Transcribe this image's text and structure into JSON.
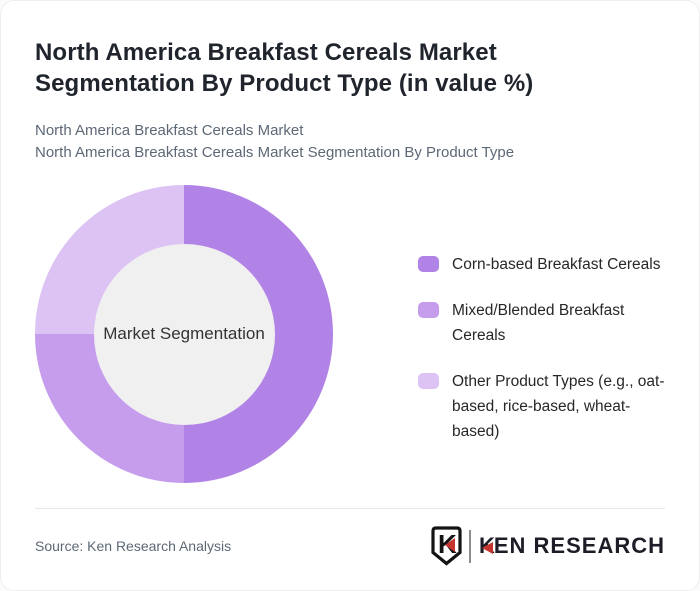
{
  "header": {
    "title": "North America Breakfast Cereals Market Segmentation By Product Type (in value %)",
    "subtitle_line1": "North America Breakfast Cereals Market",
    "subtitle_line2": "North America Breakfast Cereals Market Segmentation By Product Type"
  },
  "chart_data": {
    "type": "pie",
    "variant": "donut",
    "title": "North America Breakfast Cereals Market Segmentation By Product Type (in value %)",
    "center_label": "Market Segmentation",
    "unit": "value %",
    "values_note": "No numeric data labels shown in chart; values estimated from arc angles",
    "hole_color": "#f0f0f0",
    "center_label_color": "#333333",
    "legend_position": "right",
    "segments": [
      {
        "label": "Corn-based Breakfast Cereals",
        "value": 50,
        "color": "#b283e6"
      },
      {
        "label": "Mixed/Blended Breakfast Cereals",
        "value": 25,
        "color": "#c69ded"
      },
      {
        "label": "Other Product Types (e.g., oat-based, rice-based, wheat-based)",
        "value": 25,
        "color": "#dcc3f4"
      }
    ]
  },
  "footer": {
    "source": "Source: Ken Research Analysis",
    "logo": {
      "emblem_letter": "K",
      "text_k": "K",
      "text_rest": "EN RESEARCH",
      "accent_color": "#c5342e",
      "text_color": "#1d1d27"
    }
  }
}
